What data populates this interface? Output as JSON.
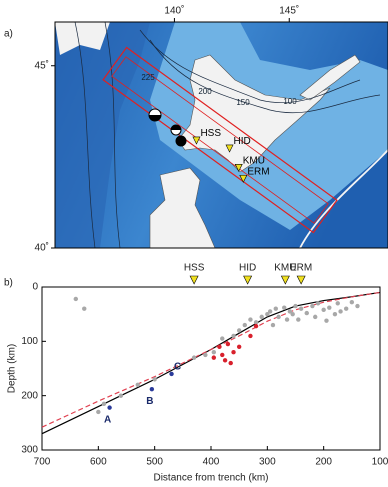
{
  "chart_data": [
    {
      "type": "map",
      "panel_label": "a)",
      "xlim": [
        134.8,
        149.3
      ],
      "xticks": [
        {
          "value": 140,
          "label": "140˚"
        },
        {
          "value": 145,
          "label": "145˚"
        }
      ],
      "ylim": [
        40,
        46.2
      ],
      "yticks": [
        {
          "value": 40,
          "label": "40˚"
        },
        {
          "value": 45,
          "label": "45˚"
        }
      ],
      "contour_labels": [
        "225",
        "200",
        "150",
        "100"
      ],
      "stations": {
        "names": [
          "HSS",
          "HID",
          "KMU",
          "ERM"
        ],
        "lon": [
          140.96,
          142.4,
          142.8,
          143.0
        ],
        "lat": [
          42.95,
          42.73,
          42.2,
          41.9
        ],
        "color": "#f0e020"
      }
    },
    {
      "type": "scatter",
      "panel_label": "b)",
      "xlabel": "Distance from trench (km)",
      "ylabel": "Depth (km)",
      "xlim": [
        700,
        100
      ],
      "xticks": [
        700,
        600,
        500,
        400,
        300,
        200,
        100
      ],
      "ylim": [
        0,
        300
      ],
      "yticks": [
        0,
        100,
        200,
        300
      ],
      "stations": {
        "names": [
          "HSS",
          "HID",
          "KMU",
          "ERM"
        ],
        "x": [
          430,
          335,
          268,
          240
        ],
        "color": "#f0e020"
      },
      "series": [
        {
          "color": "#a8a8a8",
          "x": [
            640,
            625,
            600,
            590,
            560,
            530,
            500,
            430,
            410,
            395,
            380,
            360,
            350,
            340,
            330,
            320,
            310,
            300,
            295,
            290,
            285,
            280,
            270,
            265,
            260,
            255,
            250,
            245,
            240,
            230,
            220,
            215,
            210,
            200,
            195,
            190,
            180,
            175,
            170,
            160,
            150,
            140
          ],
          "y": [
            22,
            40,
            230,
            215,
            200,
            180,
            170,
            130,
            125,
            120,
            95,
            90,
            80,
            70,
            60,
            65,
            55,
            50,
            45,
            70,
            40,
            55,
            38,
            60,
            45,
            50,
            35,
            60,
            40,
            48,
            35,
            55,
            30,
            42,
            62,
            38,
            50,
            30,
            45,
            40,
            28,
            35
          ]
        },
        {
          "color": "#d8202c",
          "x": [
            395,
            385,
            380,
            375,
            370,
            365,
            360,
            350,
            330,
            320
          ],
          "y": [
            130,
            110,
            125,
            135,
            105,
            140,
            120,
            110,
            90,
            72
          ]
        },
        {
          "color": "#2a3a9a",
          "x": [
            580,
            505,
            470
          ],
          "y": [
            222,
            188,
            160
          ],
          "labels": [
            "A",
            "B",
            "C"
          ]
        }
      ],
      "lines": [
        {
          "color": "#000000",
          "dash": false,
          "x": [
            700,
            600,
            500,
            400,
            350,
            300,
            250,
            200,
            150,
            100
          ],
          "y": [
            270,
            220,
            170,
            115,
            85,
            55,
            35,
            25,
            18,
            10
          ]
        },
        {
          "color": "#e04050",
          "dash": true,
          "x": [
            700,
            600,
            500,
            400,
            350,
            300,
            250,
            200,
            150,
            100
          ],
          "y": [
            258,
            210,
            165,
            115,
            90,
            63,
            42,
            28,
            18,
            10
          ]
        }
      ]
    }
  ]
}
